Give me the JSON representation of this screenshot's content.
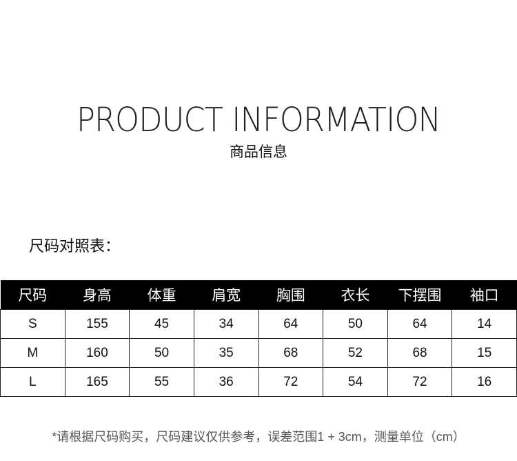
{
  "title": "PRODUCT INFORMATION",
  "subtitle": "商品信息",
  "section_label": "尺码对照表：",
  "table": {
    "headers": [
      "尺码",
      "身高",
      "体重",
      "肩宽",
      "胸围",
      "衣长",
      "下摆围",
      "袖口"
    ],
    "rows": [
      [
        "S",
        "155",
        "45",
        "34",
        "64",
        "50",
        "64",
        "14"
      ],
      [
        "M",
        "160",
        "50",
        "35",
        "68",
        "52",
        "68",
        "15"
      ],
      [
        "L",
        "165",
        "55",
        "36",
        "72",
        "54",
        "72",
        "16"
      ]
    ]
  },
  "note": "*请根据尺码购买，尺码建议仅供参考，误差范围1 + 3cm，测量单位（cm）"
}
